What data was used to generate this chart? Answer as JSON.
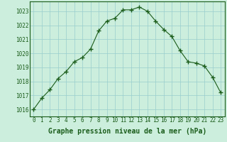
{
  "x": [
    0,
    1,
    2,
    3,
    4,
    5,
    6,
    7,
    8,
    9,
    10,
    11,
    12,
    13,
    14,
    15,
    16,
    17,
    18,
    19,
    20,
    21,
    22,
    23
  ],
  "y": [
    1016.0,
    1016.8,
    1017.4,
    1018.2,
    1018.7,
    1019.4,
    1019.7,
    1020.3,
    1021.6,
    1022.3,
    1022.5,
    1023.1,
    1023.1,
    1023.3,
    1023.0,
    1022.3,
    1021.7,
    1021.2,
    1020.2,
    1019.4,
    1019.3,
    1019.1,
    1018.3,
    1017.2
  ],
  "line_color": "#1a5c1a",
  "marker_color": "#1a5c1a",
  "background_color": "#cceedd",
  "grid_color": "#99cccc",
  "xlabel": "Graphe pression niveau de la mer (hPa)",
  "ylim": [
    1015.5,
    1023.7
  ],
  "xlim": [
    -0.5,
    23.5
  ],
  "yticks": [
    1016,
    1017,
    1018,
    1019,
    1020,
    1021,
    1022,
    1023
  ],
  "xticks": [
    0,
    1,
    2,
    3,
    4,
    5,
    6,
    7,
    8,
    9,
    10,
    11,
    12,
    13,
    14,
    15,
    16,
    17,
    18,
    19,
    20,
    21,
    22,
    23
  ],
  "tick_label_fontsize": 5.5,
  "xlabel_fontsize": 7,
  "line_width": 0.8,
  "marker_size": 2.5
}
